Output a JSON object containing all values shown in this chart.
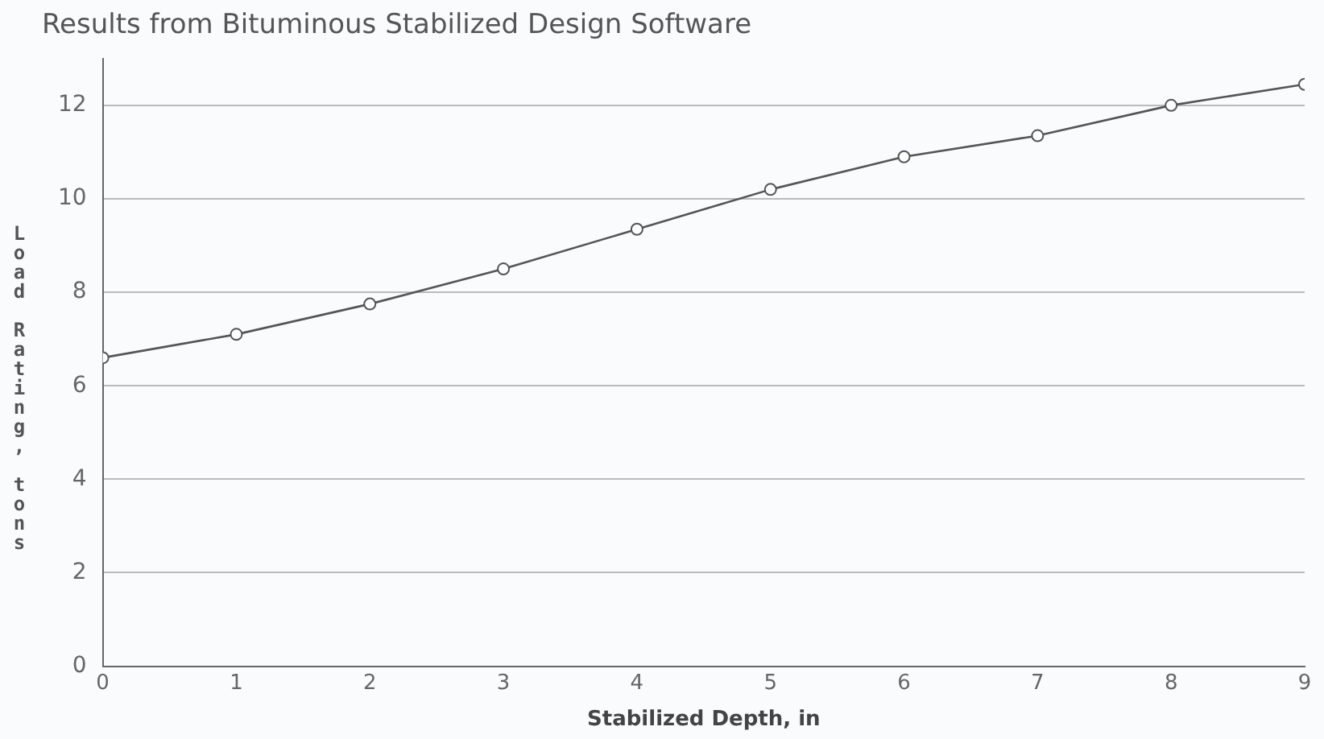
{
  "chart_data": {
    "type": "line",
    "title": "Results from Bituminous Stabilized Design Software",
    "xlabel": "Stabilized Depth, in",
    "ylabel": "Load Rating, tons",
    "x": [
      0,
      1,
      2,
      3,
      4,
      5,
      6,
      7,
      8,
      9
    ],
    "series": [
      {
        "color": "#555555",
        "values": [
          6.6,
          7.1,
          7.75,
          8.5,
          9.35,
          10.2,
          10.9,
          11.35,
          12.0,
          12.45
        ]
      }
    ],
    "xlim": [
      0,
      9
    ],
    "xticks": [
      0,
      1,
      2,
      3,
      4,
      5,
      6,
      7,
      8,
      9
    ],
    "ylim": [
      0,
      13
    ],
    "yticks": [
      0,
      2,
      4,
      6,
      8,
      10,
      12
    ],
    "grid": "y",
    "legend": false,
    "marker": "circle",
    "line_style": "solid"
  }
}
